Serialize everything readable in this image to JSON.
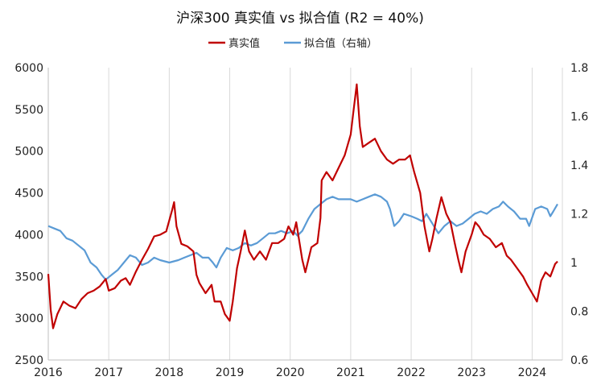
{
  "chart_data": {
    "type": "line",
    "title": "沪深300 真实值 vs 拟合值 (R2 = 40%)",
    "x_ticks": [
      "2016",
      "2017",
      "2018",
      "2019",
      "2020",
      "2021",
      "2022",
      "2023",
      "2024"
    ],
    "x_range": [
      2016.0,
      2024.5
    ],
    "y_left": {
      "ticks": [
        "2500",
        "3000",
        "3500",
        "4000",
        "4500",
        "5000",
        "5500",
        "6000"
      ],
      "range": [
        2500,
        6000
      ]
    },
    "y_right": {
      "ticks": [
        "0.6",
        "0.8",
        "1",
        "1.2",
        "1.4",
        "1.6",
        "1.8"
      ],
      "range": [
        0.6,
        1.8
      ]
    },
    "grid": "vertical",
    "legend_position": "top-center",
    "series": [
      {
        "name": "真实值",
        "color": "#c00000",
        "axis": "left",
        "points": [
          [
            2016.0,
            3530
          ],
          [
            2016.04,
            3100
          ],
          [
            2016.08,
            2880
          ],
          [
            2016.15,
            3050
          ],
          [
            2016.25,
            3200
          ],
          [
            2016.35,
            3150
          ],
          [
            2016.45,
            3120
          ],
          [
            2016.55,
            3230
          ],
          [
            2016.65,
            3300
          ],
          [
            2016.75,
            3330
          ],
          [
            2016.85,
            3380
          ],
          [
            2016.95,
            3470
          ],
          [
            2017.0,
            3330
          ],
          [
            2017.1,
            3360
          ],
          [
            2017.2,
            3450
          ],
          [
            2017.28,
            3480
          ],
          [
            2017.35,
            3400
          ],
          [
            2017.45,
            3560
          ],
          [
            2017.55,
            3700
          ],
          [
            2017.65,
            3830
          ],
          [
            2017.75,
            3980
          ],
          [
            2017.85,
            4000
          ],
          [
            2017.95,
            4040
          ],
          [
            2018.05,
            4300
          ],
          [
            2018.08,
            4390
          ],
          [
            2018.12,
            4100
          ],
          [
            2018.2,
            3890
          ],
          [
            2018.3,
            3860
          ],
          [
            2018.4,
            3800
          ],
          [
            2018.45,
            3520
          ],
          [
            2018.5,
            3420
          ],
          [
            2018.6,
            3300
          ],
          [
            2018.7,
            3400
          ],
          [
            2018.75,
            3200
          ],
          [
            2018.85,
            3200
          ],
          [
            2018.92,
            3050
          ],
          [
            2019.0,
            2970
          ],
          [
            2019.05,
            3200
          ],
          [
            2019.12,
            3600
          ],
          [
            2019.18,
            3800
          ],
          [
            2019.25,
            4050
          ],
          [
            2019.32,
            3800
          ],
          [
            2019.4,
            3700
          ],
          [
            2019.5,
            3800
          ],
          [
            2019.6,
            3700
          ],
          [
            2019.7,
            3900
          ],
          [
            2019.8,
            3900
          ],
          [
            2019.9,
            3950
          ],
          [
            2019.97,
            4100
          ],
          [
            2020.05,
            4000
          ],
          [
            2020.1,
            4150
          ],
          [
            2020.2,
            3700
          ],
          [
            2020.25,
            3550
          ],
          [
            2020.35,
            3850
          ],
          [
            2020.45,
            3900
          ],
          [
            2020.5,
            4200
          ],
          [
            2020.52,
            4650
          ],
          [
            2020.6,
            4750
          ],
          [
            2020.7,
            4650
          ],
          [
            2020.8,
            4800
          ],
          [
            2020.9,
            4950
          ],
          [
            2021.0,
            5200
          ],
          [
            2021.05,
            5500
          ],
          [
            2021.1,
            5800
          ],
          [
            2021.15,
            5300
          ],
          [
            2021.2,
            5050
          ],
          [
            2021.3,
            5100
          ],
          [
            2021.4,
            5150
          ],
          [
            2021.5,
            5000
          ],
          [
            2021.6,
            4900
          ],
          [
            2021.7,
            4850
          ],
          [
            2021.8,
            4900
          ],
          [
            2021.9,
            4900
          ],
          [
            2021.98,
            4950
          ],
          [
            2022.05,
            4750
          ],
          [
            2022.15,
            4500
          ],
          [
            2022.22,
            4100
          ],
          [
            2022.3,
            3800
          ],
          [
            2022.35,
            3950
          ],
          [
            2022.42,
            4200
          ],
          [
            2022.5,
            4450
          ],
          [
            2022.58,
            4250
          ],
          [
            2022.65,
            4150
          ],
          [
            2022.72,
            3900
          ],
          [
            2022.78,
            3700
          ],
          [
            2022.83,
            3550
          ],
          [
            2022.9,
            3800
          ],
          [
            2023.0,
            4000
          ],
          [
            2023.06,
            4150
          ],
          [
            2023.12,
            4100
          ],
          [
            2023.2,
            4000
          ],
          [
            2023.3,
            3950
          ],
          [
            2023.4,
            3850
          ],
          [
            2023.5,
            3900
          ],
          [
            2023.58,
            3750
          ],
          [
            2023.65,
            3700
          ],
          [
            2023.75,
            3600
          ],
          [
            2023.85,
            3500
          ],
          [
            2023.92,
            3400
          ],
          [
            2024.0,
            3300
          ],
          [
            2024.08,
            3200
          ],
          [
            2024.15,
            3450
          ],
          [
            2024.22,
            3550
          ],
          [
            2024.3,
            3500
          ],
          [
            2024.38,
            3650
          ],
          [
            2024.42,
            3680
          ]
        ]
      },
      {
        "name": "拟合值（右轴）",
        "color": "#5b9bd5",
        "axis": "right",
        "points": [
          [
            2016.0,
            1.15
          ],
          [
            2016.1,
            1.14
          ],
          [
            2016.2,
            1.13
          ],
          [
            2016.3,
            1.1
          ],
          [
            2016.4,
            1.09
          ],
          [
            2016.5,
            1.07
          ],
          [
            2016.6,
            1.05
          ],
          [
            2016.7,
            1.0
          ],
          [
            2016.8,
            0.98
          ],
          [
            2016.88,
            0.95
          ],
          [
            2016.95,
            0.93
          ],
          [
            2017.05,
            0.95
          ],
          [
            2017.15,
            0.97
          ],
          [
            2017.25,
            1.0
          ],
          [
            2017.35,
            1.03
          ],
          [
            2017.45,
            1.02
          ],
          [
            2017.55,
            0.99
          ],
          [
            2017.65,
            1.0
          ],
          [
            2017.75,
            1.02
          ],
          [
            2017.85,
            1.01
          ],
          [
            2018.0,
            1.0
          ],
          [
            2018.15,
            1.01
          ],
          [
            2018.25,
            1.02
          ],
          [
            2018.35,
            1.03
          ],
          [
            2018.45,
            1.04
          ],
          [
            2018.55,
            1.02
          ],
          [
            2018.65,
            1.02
          ],
          [
            2018.72,
            1.0
          ],
          [
            2018.78,
            0.98
          ],
          [
            2018.85,
            1.02
          ],
          [
            2018.95,
            1.06
          ],
          [
            2019.05,
            1.05
          ],
          [
            2019.15,
            1.06
          ],
          [
            2019.25,
            1.08
          ],
          [
            2019.35,
            1.07
          ],
          [
            2019.45,
            1.08
          ],
          [
            2019.55,
            1.1
          ],
          [
            2019.65,
            1.12
          ],
          [
            2019.75,
            1.12
          ],
          [
            2019.85,
            1.13
          ],
          [
            2019.95,
            1.12
          ],
          [
            2020.05,
            1.13
          ],
          [
            2020.12,
            1.11
          ],
          [
            2020.2,
            1.13
          ],
          [
            2020.3,
            1.18
          ],
          [
            2020.4,
            1.22
          ],
          [
            2020.5,
            1.24
          ],
          [
            2020.6,
            1.26
          ],
          [
            2020.7,
            1.27
          ],
          [
            2020.8,
            1.26
          ],
          [
            2020.9,
            1.26
          ],
          [
            2021.0,
            1.26
          ],
          [
            2021.1,
            1.25
          ],
          [
            2021.2,
            1.26
          ],
          [
            2021.3,
            1.27
          ],
          [
            2021.4,
            1.28
          ],
          [
            2021.5,
            1.27
          ],
          [
            2021.6,
            1.25
          ],
          [
            2021.65,
            1.22
          ],
          [
            2021.72,
            1.15
          ],
          [
            2021.8,
            1.17
          ],
          [
            2021.88,
            1.2
          ],
          [
            2022.0,
            1.19
          ],
          [
            2022.1,
            1.18
          ],
          [
            2022.18,
            1.17
          ],
          [
            2022.25,
            1.2
          ],
          [
            2022.35,
            1.16
          ],
          [
            2022.45,
            1.12
          ],
          [
            2022.55,
            1.15
          ],
          [
            2022.65,
            1.17
          ],
          [
            2022.75,
            1.15
          ],
          [
            2022.85,
            1.16
          ],
          [
            2022.95,
            1.18
          ],
          [
            2023.05,
            1.2
          ],
          [
            2023.15,
            1.21
          ],
          [
            2023.25,
            1.2
          ],
          [
            2023.35,
            1.22
          ],
          [
            2023.45,
            1.23
          ],
          [
            2023.52,
            1.25
          ],
          [
            2023.6,
            1.23
          ],
          [
            2023.7,
            1.21
          ],
          [
            2023.8,
            1.18
          ],
          [
            2023.9,
            1.18
          ],
          [
            2023.95,
            1.15
          ],
          [
            2024.05,
            1.22
          ],
          [
            2024.15,
            1.23
          ],
          [
            2024.25,
            1.22
          ],
          [
            2024.3,
            1.19
          ],
          [
            2024.35,
            1.21
          ],
          [
            2024.42,
            1.24
          ]
        ]
      }
    ]
  }
}
